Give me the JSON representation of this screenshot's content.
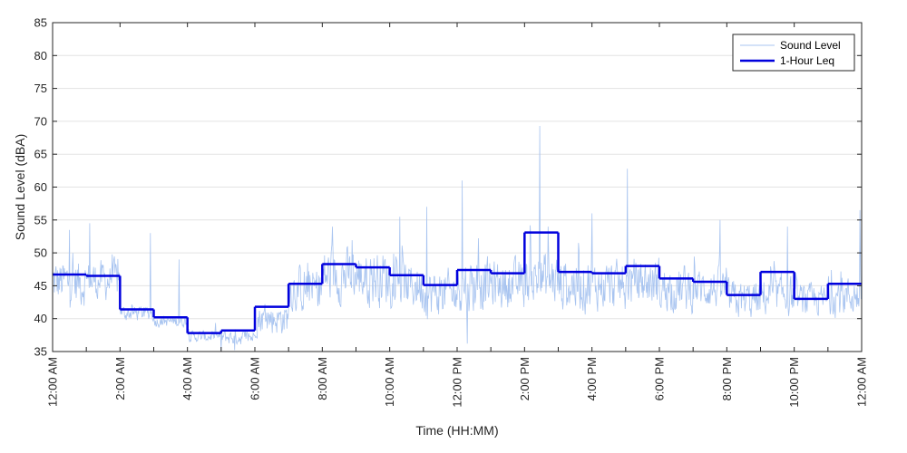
{
  "chart_data": {
    "type": "line",
    "title": "",
    "xlabel": "Time (HH:MM)",
    "ylabel": "Sound Level (dBA)",
    "xlim": [
      0,
      24
    ],
    "ylim": [
      35,
      85
    ],
    "y_ticks": [
      35,
      40,
      45,
      50,
      55,
      60,
      65,
      70,
      75,
      80,
      85
    ],
    "x_ticks": [
      0,
      2,
      4,
      6,
      8,
      10,
      12,
      14,
      16,
      18,
      20,
      22,
      24
    ],
    "x_tick_labels": [
      "12:00 AM",
      "2:00 AM",
      "4:00 AM",
      "6:00 AM",
      "8:00 AM",
      "10:00 AM",
      "12:00 PM",
      "2:00 PM",
      "4:00 PM",
      "6:00 PM",
      "8:00 PM",
      "10:00 PM",
      "12:00 AM"
    ],
    "grid": "horizontal",
    "legend_position": "top-right",
    "series": [
      {
        "name": "Sound Level",
        "style": "thin-line",
        "color": "#a8c4f0",
        "hourly_mean": [
          45.5,
          45.8,
          40.8,
          39.6,
          37.3,
          37.2,
          40.0,
          44.5,
          46.5,
          46.3,
          45.0,
          43.8,
          45.2,
          45.2,
          46.0,
          45.2,
          45.0,
          45.5,
          44.5,
          44.6,
          42.8,
          43.5,
          42.8,
          43.5
        ],
        "hourly_spread": [
          6,
          5,
          2,
          1.5,
          1.5,
          2,
          4,
          6,
          7,
          7,
          6,
          6,
          7,
          6,
          7,
          7,
          6,
          6,
          6,
          5,
          5,
          5,
          4,
          5
        ],
        "peaks": [
          {
            "x": 14.45,
            "y": 69.3
          },
          {
            "x": 17.05,
            "y": 62.8
          },
          {
            "x": 12.15,
            "y": 61.0
          },
          {
            "x": 10.3,
            "y": 55.5
          },
          {
            "x": 11.1,
            "y": 57.0
          },
          {
            "x": 2.9,
            "y": 53.0
          },
          {
            "x": 1.1,
            "y": 54.5
          },
          {
            "x": 0.5,
            "y": 53.5
          },
          {
            "x": 8.3,
            "y": 54.0
          },
          {
            "x": 16.0,
            "y": 56.0
          },
          {
            "x": 14.7,
            "y": 54.0
          },
          {
            "x": 19.8,
            "y": 55.0
          },
          {
            "x": 21.8,
            "y": 54.0
          },
          {
            "x": 23.95,
            "y": 56.5
          },
          {
            "x": 3.75,
            "y": 49.0
          }
        ],
        "troughs": [
          {
            "x": 5.0,
            "y": 34.8
          },
          {
            "x": 12.3,
            "y": 36.2
          },
          {
            "x": 5.4,
            "y": 35.2
          }
        ]
      },
      {
        "name": "1-Hour Leq",
        "style": "step",
        "color": "#0000dd",
        "x": [
          0,
          1,
          2,
          3,
          4,
          5,
          6,
          7,
          8,
          9,
          10,
          11,
          12,
          13,
          14,
          15,
          16,
          17,
          18,
          19,
          20,
          21,
          22,
          23
        ],
        "values": [
          46.7,
          46.5,
          41.4,
          40.2,
          37.8,
          38.2,
          41.8,
          45.3,
          48.3,
          47.8,
          46.6,
          45.1,
          47.4,
          46.9,
          53.1,
          47.1,
          46.9,
          48.0,
          46.1,
          45.6,
          43.6,
          47.1,
          43.0,
          45.3
        ]
      }
    ]
  }
}
